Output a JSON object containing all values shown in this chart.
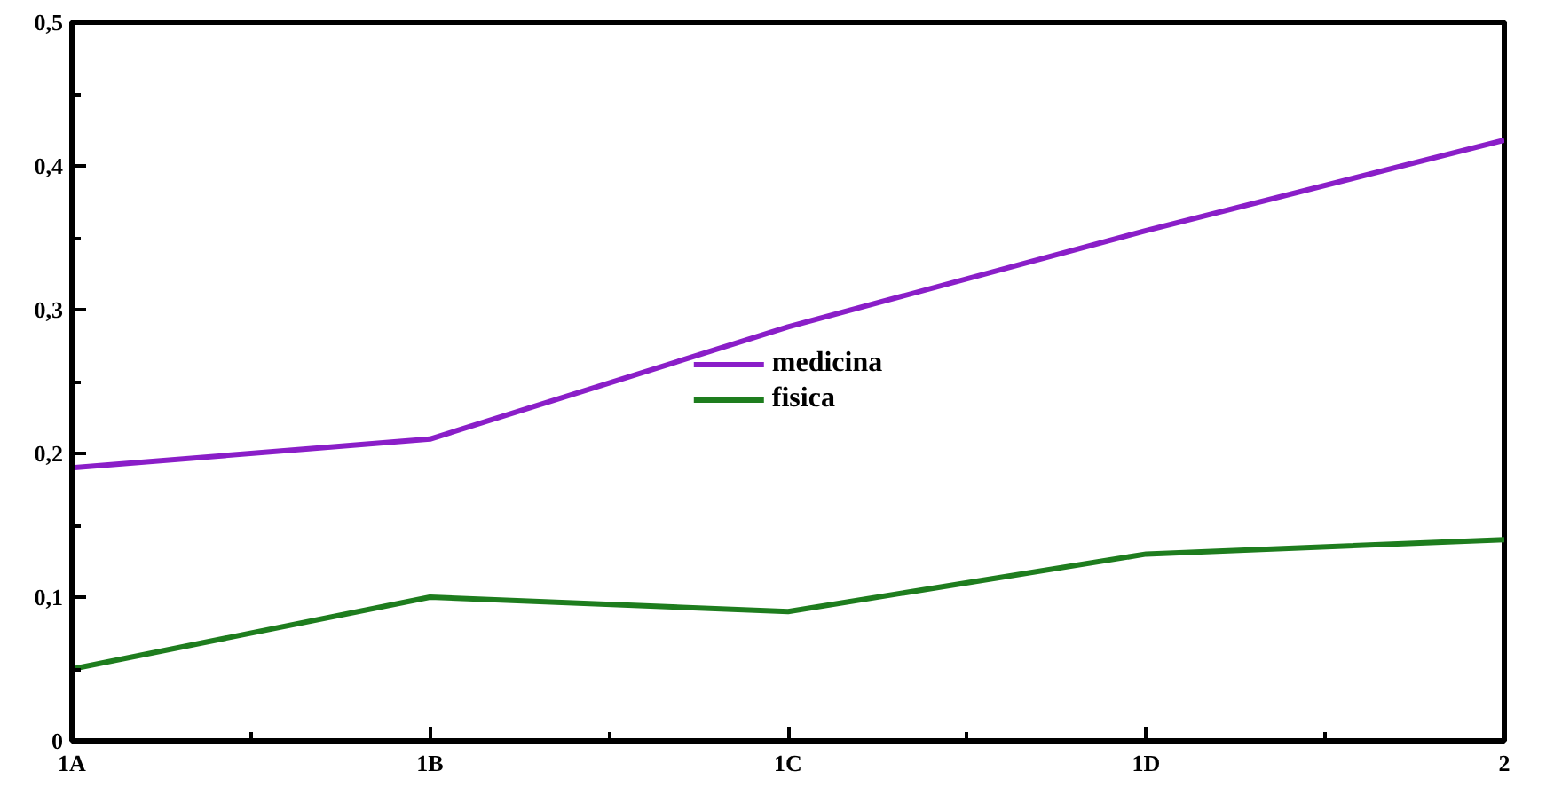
{
  "chart_data": {
    "type": "line",
    "categories": [
      "1A",
      "1B",
      "1C",
      "1D",
      "2"
    ],
    "series": [
      {
        "name": "medicina",
        "color": "#8a1ec8",
        "values": [
          0.19,
          0.21,
          0.288,
          0.355,
          0.418
        ]
      },
      {
        "name": "fisica",
        "color": "#1e7d1e",
        "values": [
          0.05,
          0.1,
          0.09,
          0.13,
          0.14
        ]
      }
    ],
    "ylim": [
      0,
      0.5
    ],
    "yticks": [
      {
        "value": 0,
        "label": "0"
      },
      {
        "value": 0.1,
        "label": "0,1"
      },
      {
        "value": 0.2,
        "label": "0,2"
      },
      {
        "value": 0.3,
        "label": "0,3"
      },
      {
        "value": 0.4,
        "label": "0,4"
      },
      {
        "value": 0.5,
        "label": "0,5"
      }
    ],
    "grid": false,
    "legend": "center",
    "marker": "none",
    "line_style": "solid"
  }
}
